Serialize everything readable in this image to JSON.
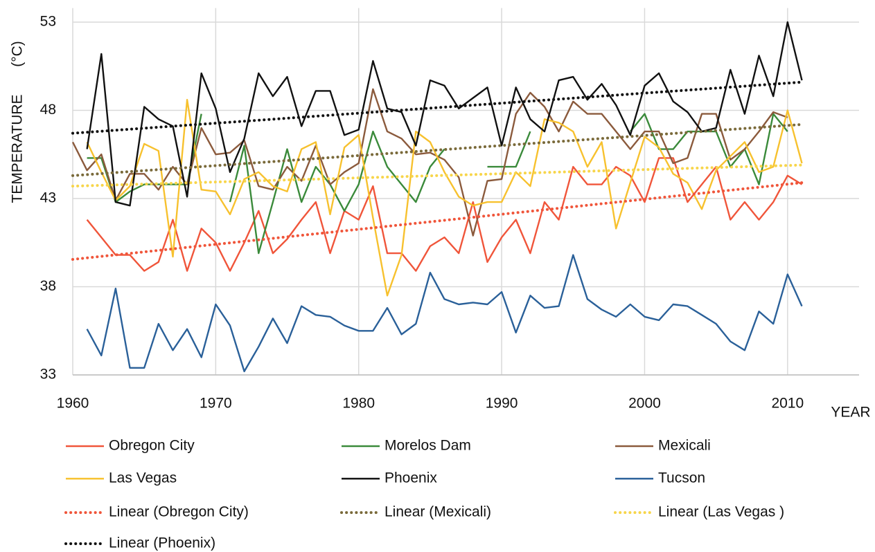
{
  "chart_data": {
    "type": "line",
    "ylabel": "TEMPERATURE",
    "yunit": "(°C)",
    "xlabel": "YEAR",
    "x": [
      1960,
      1961,
      1962,
      1963,
      1964,
      1965,
      1966,
      1967,
      1968,
      1969,
      1970,
      1971,
      1972,
      1973,
      1974,
      1975,
      1976,
      1977,
      1978,
      1979,
      1980,
      1981,
      1982,
      1983,
      1984,
      1985,
      1986,
      1987,
      1988,
      1989,
      1990,
      1991,
      1992,
      1993,
      1994,
      1995,
      1996,
      1997,
      1998,
      1999,
      2000,
      2001,
      2002,
      2003,
      2004,
      2005,
      2006,
      2007,
      2008,
      2009,
      2010,
      2011
    ],
    "series": [
      {
        "name": "Obregon City",
        "color": "#f0553a",
        "values": [
          null,
          41.8,
          40.8,
          39.8,
          39.8,
          38.9,
          39.4,
          41.8,
          38.9,
          41.3,
          40.5,
          38.9,
          40.5,
          42.3,
          39.9,
          40.7,
          41.8,
          42.8,
          39.9,
          42.3,
          41.8,
          43.7,
          39.9,
          39.9,
          38.9,
          40.3,
          40.8,
          39.9,
          42.8,
          39.4,
          40.8,
          41.8,
          39.9,
          42.8,
          41.8,
          44.8,
          43.8,
          43.8,
          44.8,
          44.3,
          42.8,
          45.3,
          45.3,
          42.8,
          43.8,
          44.8,
          41.8,
          42.8,
          41.8,
          42.8,
          44.3,
          43.8
        ]
      },
      {
        "name": "Morelos Dam",
        "color": "#3a8a3a",
        "values": [
          null,
          45.3,
          45.3,
          42.8,
          43.4,
          43.8,
          43.8,
          43.8,
          43.8,
          47.8,
          null,
          42.8,
          46.0,
          39.9,
          42.8,
          45.8,
          42.8,
          44.8,
          43.8,
          42.3,
          43.8,
          46.8,
          44.8,
          43.8,
          42.8,
          44.8,
          45.8,
          null,
          null,
          44.8,
          44.8,
          44.8,
          46.8,
          null,
          null,
          null,
          null,
          null,
          null,
          46.8,
          47.8,
          45.8,
          45.8,
          46.8,
          46.8,
          46.8,
          44.8,
          45.8,
          43.8,
          47.8,
          46.8,
          null
        ]
      },
      {
        "name": "Mexicali",
        "color": "#8b5a3c",
        "values": [
          46.2,
          44.6,
          45.5,
          42.9,
          44.4,
          44.4,
          43.5,
          44.8,
          43.8,
          47.0,
          45.5,
          45.6,
          46.3,
          43.7,
          43.5,
          44.8,
          44.0,
          46.0,
          43.8,
          44.5,
          45.0,
          49.2,
          46.8,
          46.4,
          45.5,
          45.6,
          45.2,
          44.2,
          40.9,
          44.0,
          44.1,
          47.8,
          49.0,
          48.2,
          46.8,
          48.5,
          47.8,
          47.8,
          46.8,
          45.8,
          46.8,
          46.8,
          45.0,
          45.3,
          47.8,
          47.8,
          45.2,
          45.8,
          46.8,
          47.9,
          47.6,
          null
        ]
      },
      {
        "name": "Las Vegas",
        "color": "#f7c12e",
        "values": [
          null,
          46.2,
          44.5,
          42.9,
          43.7,
          46.1,
          45.7,
          39.7,
          48.6,
          43.5,
          43.4,
          42.1,
          44.1,
          44.5,
          43.7,
          43.4,
          45.8,
          46.2,
          42.1,
          45.9,
          46.6,
          41.9,
          37.5,
          39.8,
          46.8,
          46.2,
          44.5,
          43.1,
          42.6,
          42.8,
          42.8,
          44.5,
          43.7,
          47.5,
          47.3,
          46.8,
          44.8,
          46.2,
          41.3,
          43.9,
          46.5,
          45.9,
          44.4,
          43.9,
          42.4,
          44.6,
          45.4,
          46.2,
          44.5,
          44.8,
          48.0,
          45.0
        ]
      },
      {
        "name": "Phoenix",
        "color": "#111111",
        "values": [
          null,
          45.8,
          51.2,
          42.8,
          42.6,
          48.2,
          47.5,
          47.1,
          43.1,
          50.1,
          48.1,
          44.5,
          46.4,
          50.1,
          48.8,
          49.9,
          47.1,
          49.1,
          49.1,
          46.6,
          46.9,
          50.8,
          48.1,
          47.9,
          46.0,
          49.7,
          49.4,
          48.1,
          48.7,
          49.3,
          46.0,
          49.3,
          47.5,
          46.8,
          49.7,
          49.9,
          48.6,
          49.5,
          48.3,
          46.6,
          49.4,
          50.1,
          48.5,
          47.9,
          46.8,
          47.0,
          50.3,
          47.8,
          51.1,
          48.8,
          53.0,
          49.7
        ]
      },
      {
        "name": "Tucson",
        "color": "#2a6099",
        "values": [
          null,
          35.6,
          34.1,
          37.9,
          33.4,
          33.4,
          35.9,
          34.4,
          35.6,
          34.0,
          37.0,
          35.8,
          33.2,
          34.6,
          36.2,
          34.8,
          36.9,
          36.4,
          36.3,
          35.8,
          35.5,
          35.5,
          36.8,
          35.3,
          35.9,
          38.8,
          37.3,
          37.0,
          37.1,
          37.0,
          37.7,
          35.4,
          37.5,
          36.8,
          36.9,
          39.8,
          37.3,
          36.7,
          36.3,
          37.0,
          36.3,
          36.1,
          37.0,
          36.9,
          36.4,
          35.9,
          34.9,
          34.4,
          36.6,
          35.9,
          38.7,
          36.9
        ]
      }
    ],
    "trendlines": [
      {
        "name": "Linear (Obregon City)",
        "color": "#f0553a",
        "x": [
          1960,
          2011
        ],
        "values": [
          39.55,
          43.9
        ]
      },
      {
        "name": "Linear (Mexicali)",
        "color": "#7a6a3a",
        "x": [
          1960,
          2011
        ],
        "values": [
          44.3,
          47.2
        ]
      },
      {
        "name": "Linear (Las Vegas )",
        "color": "#f7d54a",
        "x": [
          1960,
          2011
        ],
        "values": [
          43.7,
          44.9
        ]
      },
      {
        "name": "Linear (Phoenix)",
        "color": "#111111",
        "x": [
          1960,
          2011
        ],
        "values": [
          46.7,
          49.6
        ]
      }
    ],
    "xlim": [
      1960,
      2015
    ],
    "xticks": [
      1960,
      1970,
      1980,
      1990,
      2000,
      2010
    ],
    "ylim": [
      33,
      53.8
    ],
    "yticks": [
      33,
      38,
      43,
      48,
      53
    ],
    "grid": true
  }
}
